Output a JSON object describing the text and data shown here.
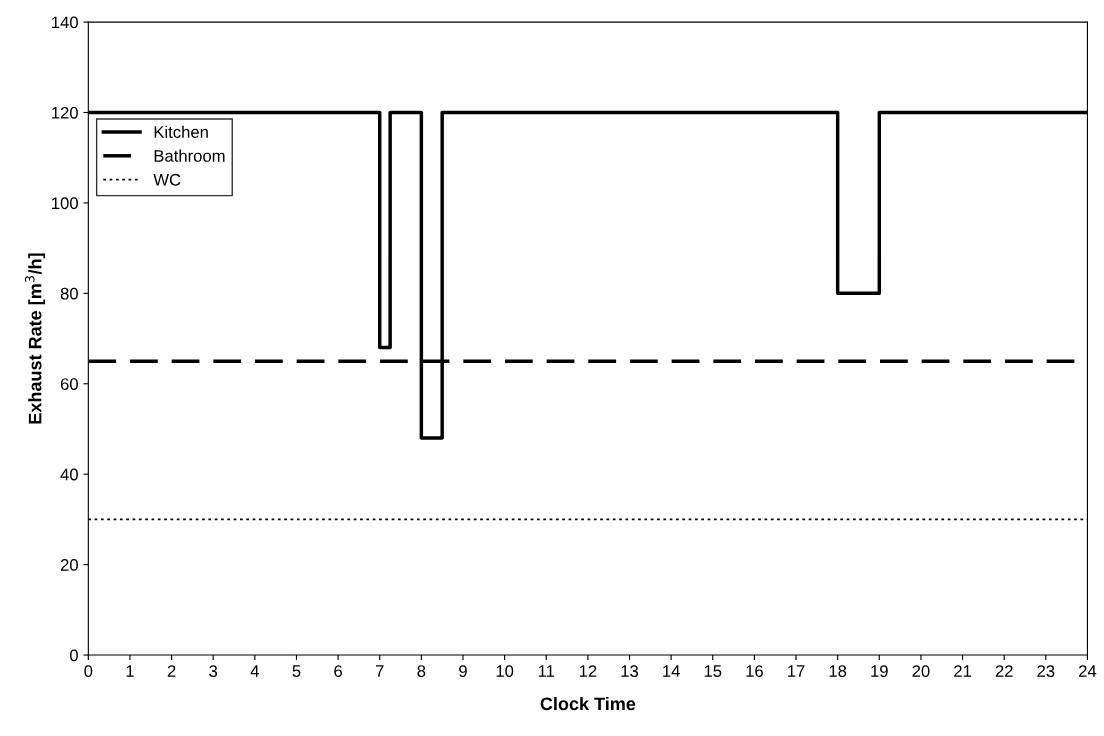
{
  "chart_data": {
    "type": "step",
    "xlabel": "Clock Time",
    "ylabel": "Exhaust Rate [m$^{3}$/h]",
    "xlim": [
      0,
      24
    ],
    "xticks": [
      0,
      1,
      2,
      3,
      4,
      5,
      6,
      7,
      8,
      9,
      10,
      11,
      12,
      13,
      14,
      15,
      16,
      17,
      18,
      19,
      20,
      21,
      22,
      23,
      24
    ],
    "ylim": [
      0,
      140
    ],
    "yticks": [
      0,
      20,
      40,
      60,
      80,
      100,
      120,
      140
    ],
    "grid": false,
    "legend": "top left",
    "series": [
      {
        "name": "Kitchen",
        "color": "#000000",
        "line_style": "solid",
        "x": [
          0,
          7,
          7.25,
          8,
          8.5,
          18,
          19,
          24
        ],
        "values": [
          120,
          68,
          120,
          48,
          120,
          80,
          120,
          120
        ]
      },
      {
        "name": "Bathroom",
        "color": "#000000",
        "line_style": "dashed",
        "x": [
          0,
          24
        ],
        "values": [
          65,
          65
        ]
      },
      {
        "name": "WC",
        "color": "#000000",
        "line_style": "dotted",
        "x": [
          0,
          24
        ],
        "values": [
          30,
          30
        ]
      }
    ]
  }
}
